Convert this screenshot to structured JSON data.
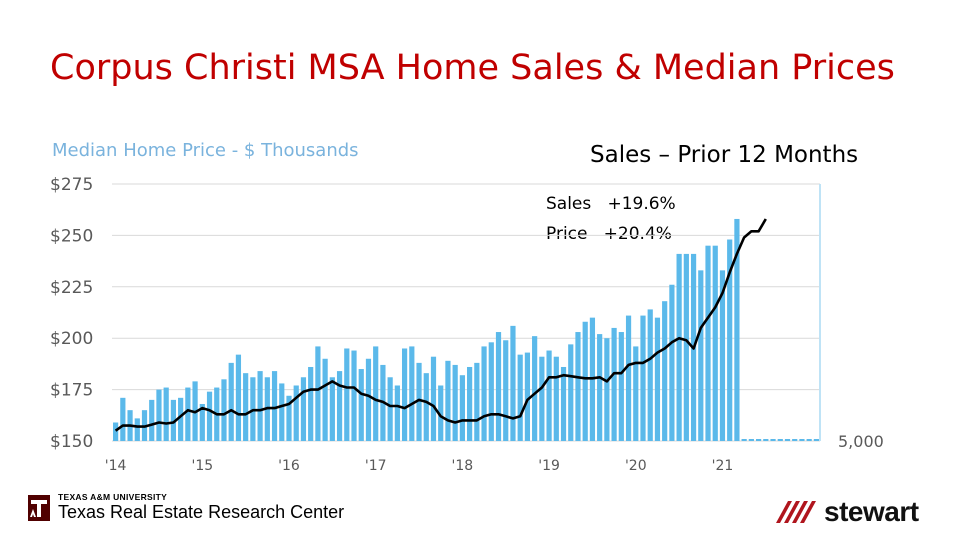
{
  "slide": {
    "title": "Corpus Christi MSA Home Sales & Median Prices",
    "left_axis_label": "Median Home Price - $ Thousands",
    "right_header": "Sales – Prior 12 Months",
    "annotation_sales": "Sales   +19.6%",
    "annotation_price": "Price   +20.4%"
  },
  "footer": {
    "university": "TEXAS A&M UNIVERSITY",
    "center": "Texas Real Estate Research Center",
    "brand": "stewart"
  },
  "colors": {
    "bar": "#5bb9ea",
    "line": "#000000",
    "title": "#c00000",
    "axis_label": "#7ab3dd",
    "grid": "#d9d9d9"
  },
  "chart_data": {
    "type": "bar",
    "y_left": {
      "min": 150,
      "max": 275,
      "ticks": [
        "$150",
        "$175",
        "$200",
        "$225",
        "$250",
        "$275"
      ]
    },
    "y_right_tick": "5,000",
    "x_tick_labels": [
      "'14",
      "'15",
      "'16",
      "'17",
      "'18",
      "'19",
      "'20",
      "'21"
    ],
    "series": [
      {
        "kind": "bar",
        "values_left_scale": [
          159,
          171,
          165,
          161,
          165,
          170,
          175,
          176,
          170,
          171,
          176,
          179,
          168,
          174,
          176,
          180,
          188,
          192,
          183,
          181,
          184,
          181,
          184,
          178,
          172,
          177,
          181,
          186,
          196,
          190,
          181,
          184,
          195,
          194,
          185,
          190,
          196,
          187,
          181,
          177,
          195,
          196,
          188,
          183,
          191,
          177,
          189,
          187,
          182,
          186,
          188,
          196,
          198,
          203,
          199,
          206,
          192,
          193,
          201,
          191,
          194,
          191,
          186,
          197,
          203,
          208,
          210,
          202,
          200,
          205,
          203,
          211,
          196,
          211,
          214,
          210,
          218,
          226,
          241,
          241,
          241,
          233,
          245,
          245,
          233,
          248,
          258
        ],
        "future_points": 11
      },
      {
        "kind": "line",
        "values": [
          155,
          157.5,
          157.5,
          157,
          157,
          158,
          159,
          158.5,
          159,
          162,
          165,
          164,
          166,
          165,
          163,
          163,
          165,
          163,
          163,
          165,
          165,
          166,
          166,
          167,
          168,
          171,
          174,
          175,
          175,
          177,
          179,
          177,
          176,
          176,
          173,
          172,
          170,
          169,
          167,
          167,
          166,
          168,
          170,
          169,
          167,
          162,
          160,
          159,
          160,
          160,
          160,
          162,
          163,
          163,
          162,
          161,
          162,
          170,
          173,
          176,
          181,
          181,
          182,
          181.5,
          181,
          180.5,
          180.5,
          181,
          179,
          183,
          183,
          187,
          188,
          188,
          190,
          193,
          195,
          198,
          200,
          199,
          195,
          205,
          210,
          215,
          222,
          232,
          241,
          249,
          252,
          252,
          258
        ]
      }
    ]
  }
}
